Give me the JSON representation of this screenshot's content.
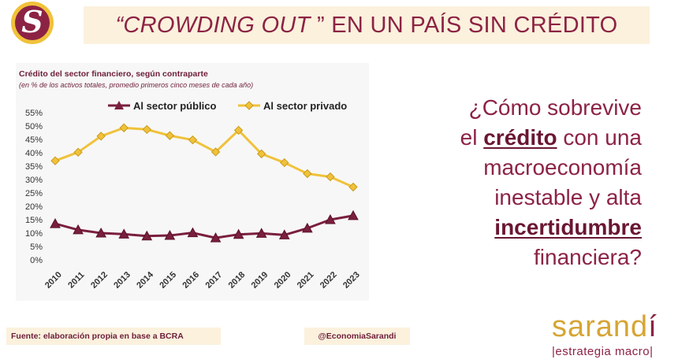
{
  "logo": {
    "letter": "S"
  },
  "header": {
    "title_italic": "“CROWDING OUT",
    "title_rest": " ” EN UN PAÍS SIN CRÉDITO"
  },
  "question": {
    "line1": "¿Cómo sobrevive",
    "line2_pre": "el ",
    "line2_hl": "crédito",
    "line2_post": " con una",
    "line3": "macroeconomía",
    "line4": "inestable y alta",
    "line5_hl": "incertidumbre",
    "line6": "financiera?"
  },
  "footer": {
    "source": "Fuente: elaboración propia en base a BCRA",
    "handle": "@EconomiaSarandi"
  },
  "brand": {
    "name_a": "sarand",
    "name_b": "í",
    "tagline": "|estrategia macro|"
  },
  "colors": {
    "burgundy": "#8c2344",
    "gold": "#f0c23a",
    "cream": "#fbf1dd"
  },
  "chart_data": {
    "type": "line",
    "title": "Crédito del sector financiero, según contraparte",
    "subtitle": "(en % de los activos totales, promedio primeros cinco meses de cada año)",
    "categories": [
      "2010",
      "2011",
      "2012",
      "2013",
      "2014",
      "2015",
      "2016",
      "2017",
      "2018",
      "2019",
      "2020",
      "2021",
      "2022",
      "2023"
    ],
    "ylim": [
      0,
      55
    ],
    "yticks": [
      "0%",
      "5%",
      "10%",
      "15%",
      "20%",
      "25%",
      "30%",
      "35%",
      "40%",
      "45%",
      "50%",
      "55%"
    ],
    "grid": false,
    "legend": "top",
    "series": [
      {
        "name": "Al sector público",
        "color": "#7a1f3d",
        "marker": "triangle",
        "values": [
          13.5,
          11.2,
          10.0,
          9.6,
          8.9,
          9.1,
          10.1,
          8.2,
          9.5,
          9.9,
          9.3,
          11.8,
          15.0,
          16.5
        ]
      },
      {
        "name": "Al sector privado",
        "color": "#f0c23a",
        "marker": "diamond",
        "values": [
          37.0,
          40.2,
          46.2,
          49.3,
          48.7,
          46.4,
          44.8,
          40.3,
          48.4,
          39.6,
          36.3,
          32.2,
          31.0,
          27.2
        ]
      }
    ]
  }
}
